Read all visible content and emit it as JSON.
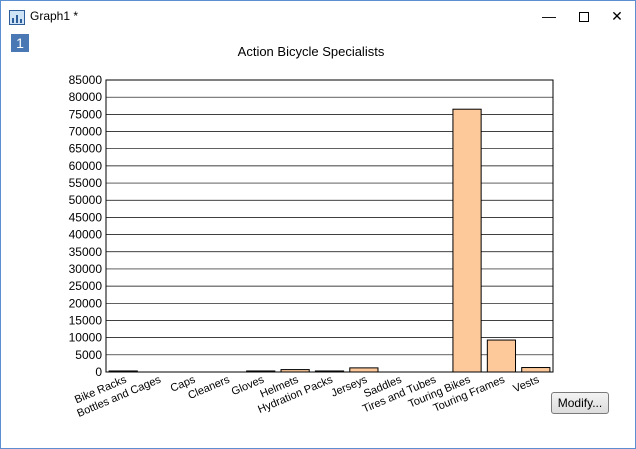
{
  "window": {
    "title": "Graph1 *",
    "layer_label": "1",
    "minimize_icon": "minimize-icon",
    "maximize_icon": "maximize-icon",
    "close_icon": "close-icon"
  },
  "modify_button": {
    "label": "Modify..."
  },
  "colors": {
    "bar_fill": "#fdc99a",
    "bar_stroke": "#000000",
    "grid": "#000000",
    "title_bar_border": "#5b8fd1"
  },
  "chart_data": {
    "type": "bar",
    "title": "Action Bicycle Specialists",
    "xlabel": "",
    "ylabel": "",
    "ylim": [
      0,
      85000
    ],
    "yticks": [
      0,
      5000,
      10000,
      15000,
      20000,
      25000,
      30000,
      35000,
      40000,
      45000,
      50000,
      55000,
      60000,
      65000,
      70000,
      75000,
      80000,
      85000
    ],
    "grid": "horizontal",
    "categories": [
      "Bike Racks",
      "Bottles and Cages",
      "Caps",
      "Cleaners",
      "Gloves",
      "Helmets",
      "Hydration Packs",
      "Jerseys",
      "Saddles",
      "Tires and Tubes",
      "Touring Bikes",
      "Touring Frames",
      "Vests"
    ],
    "values": [
      300,
      0,
      0,
      0,
      300,
      700,
      300,
      1200,
      0,
      0,
      76500,
      9300,
      1300
    ]
  }
}
